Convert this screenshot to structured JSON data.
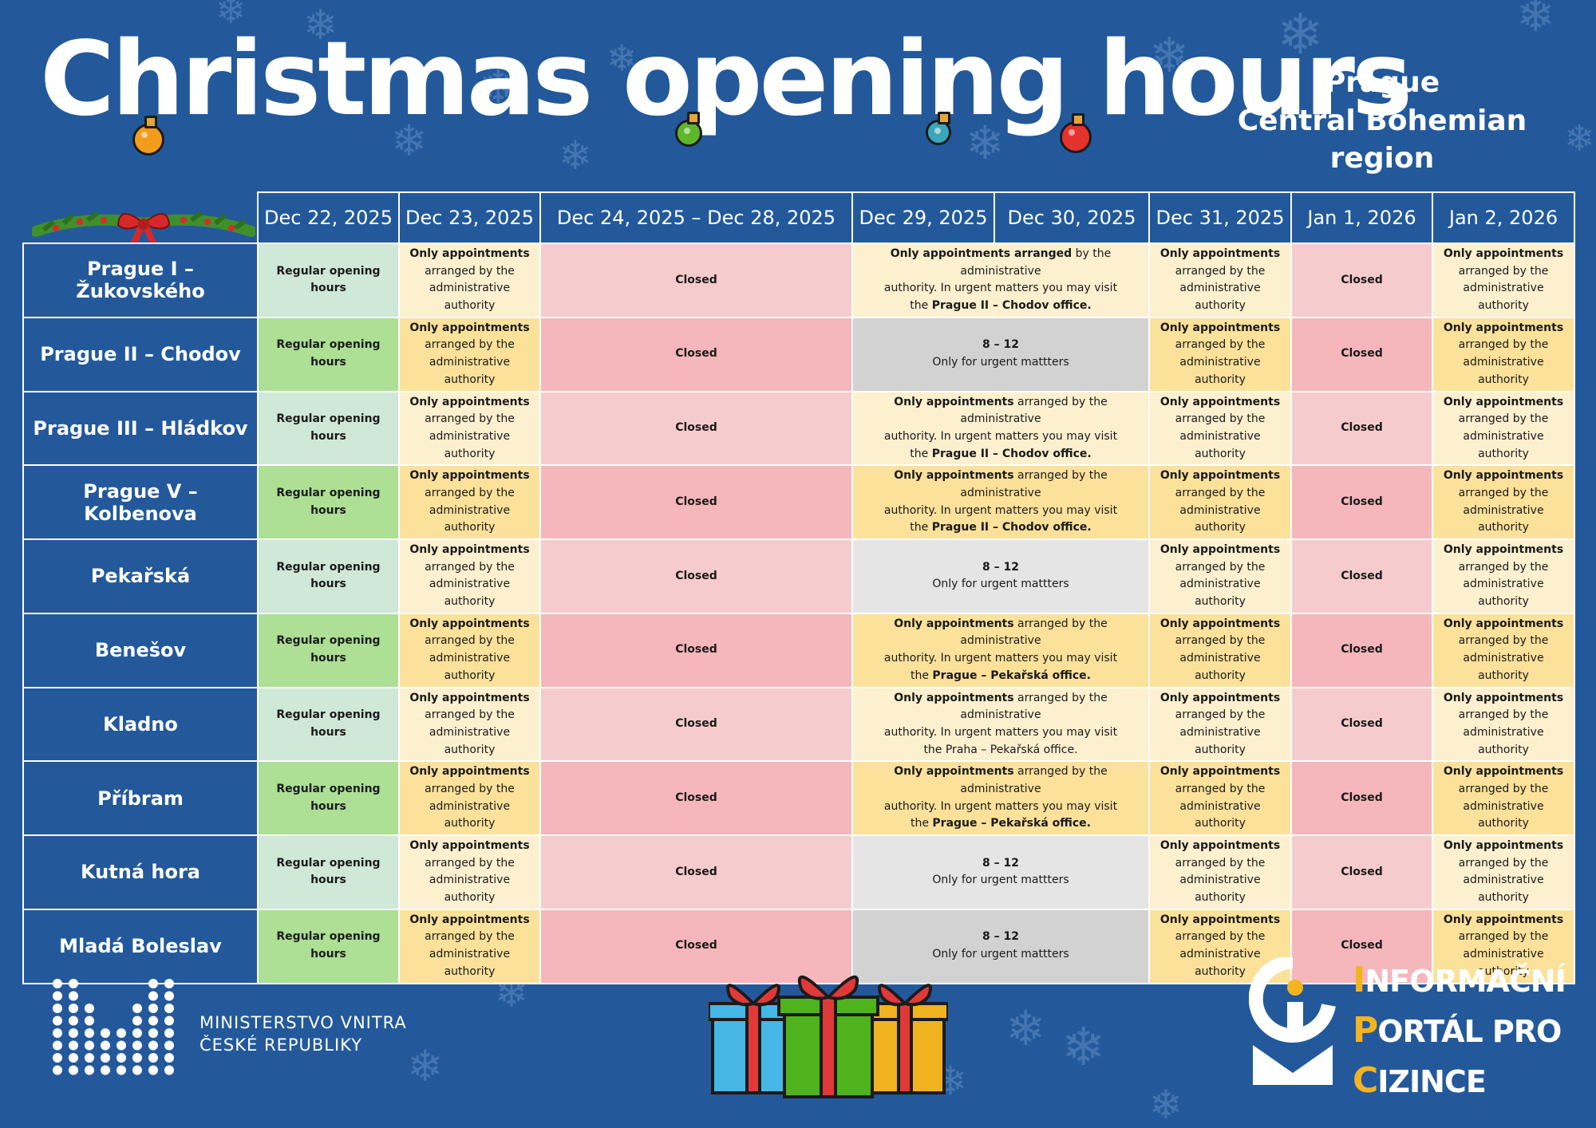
{
  "title": "Christmas opening hours",
  "region": [
    "Prague",
    "Central Bohemian region"
  ],
  "colors": {
    "background": "#23599b",
    "regular": "#addf95",
    "appointment": "#fce19a",
    "closed": "#f5b7bb",
    "urgent": "#d2d2d2",
    "accent": "#f3b41f"
  },
  "columns": [
    "Dec 22, 2025",
    "Dec 23, 2025",
    "Dec 24, 2025 – Dec 28, 2025",
    "Dec 29, 2025",
    "Dec 30, 2025",
    "Dec 31, 2025",
    "Jan 1, 2026",
    "Jan 2, 2026"
  ],
  "text": {
    "regular": "Regular opening hours",
    "appt_bold": "Only appointments",
    "appt_rest1": "arranged by the",
    "appt_rest2": "administrative authority",
    "closed": "Closed",
    "hours": "8 – 12",
    "urgent": "Only for urgent mattters",
    "redirect_l1_bold": "Only appointments",
    "redirect_l1_rest": " arranged by the administrative",
    "redirect_l2": "authority. In urgent matters you may visit",
    "redirect_first_bold": "Only appointments arranged",
    "redirect_first_rest": " by the administrative",
    "chodov_pre": "the ",
    "chodov_bold": "Prague II – Chodov office.",
    "pekarska_bold": "Prague – Pekařská office.",
    "praha_pekarska": "the Praha – Pekařská office."
  },
  "rows": [
    {
      "location": "Prague I – Žukovského",
      "period": "redirect-chodov-first"
    },
    {
      "location": "Prague II – Chodov",
      "period": "urgent"
    },
    {
      "location": "Prague III – Hládkov",
      "period": "redirect-chodov"
    },
    {
      "location": "Prague V – Kolbenova",
      "period": "redirect-chodov"
    },
    {
      "location": "Pekařská",
      "period": "urgent"
    },
    {
      "location": "Benešov",
      "period": "redirect-pekarska"
    },
    {
      "location": "Kladno",
      "period": "redirect-praha"
    },
    {
      "location": "Příbram",
      "period": "redirect-pekarska"
    },
    {
      "location": "Kutná hora",
      "period": "urgent"
    },
    {
      "location": "Mladá Boleslav",
      "period": "urgent"
    }
  ],
  "footer": {
    "ministry": [
      "MINISTERSTVO VNITRA",
      "ČESKÉ REPUBLIKY"
    ],
    "portal": [
      {
        "initial": "I",
        "rest": "NFORMAČNÍ"
      },
      {
        "initial": "P",
        "rest": "ORTÁL PRO"
      },
      {
        "initial": "C",
        "rest": "IZINCE"
      }
    ]
  },
  "icons": [
    "snowflake-icon",
    "bauble-icon",
    "garland-icon",
    "gifts-icon",
    "ministry-logo-icon",
    "info-portal-logo-icon"
  ]
}
